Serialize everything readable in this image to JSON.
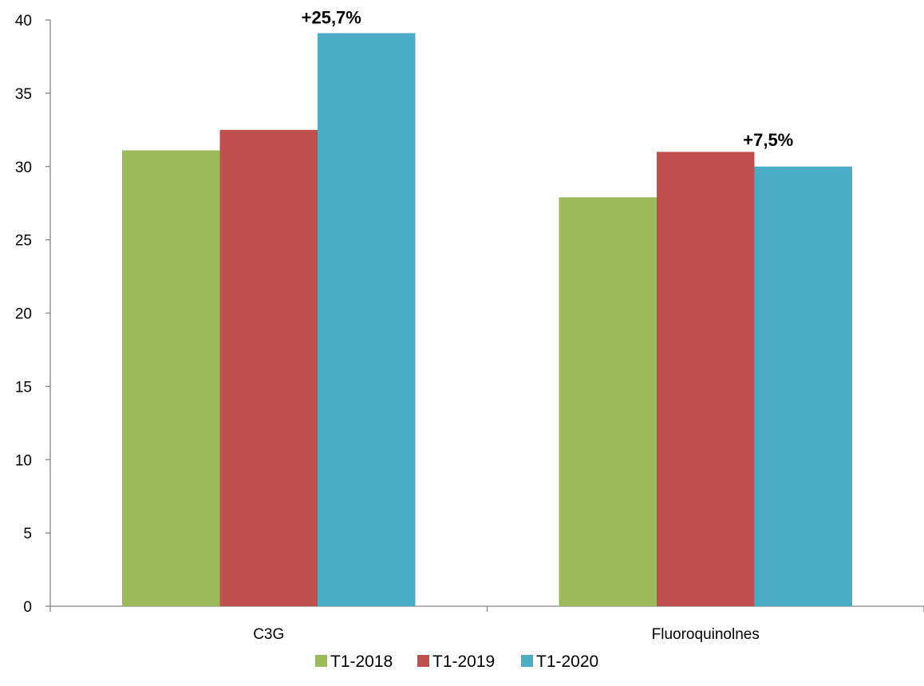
{
  "chart_data": {
    "type": "bar",
    "categories": [
      "C3G",
      "Fluoroquinolnes"
    ],
    "series": [
      {
        "name": "T1-2018",
        "values": [
          31.1,
          27.9
        ],
        "color": "#9BBB59"
      },
      {
        "name": "T1-2019",
        "values": [
          32.5,
          31.0
        ],
        "color": "#C0504D"
      },
      {
        "name": "T1-2020",
        "values": [
          39.1,
          30.0
        ],
        "color": "#4BACC6"
      }
    ],
    "annotations": [
      {
        "category": "C3G",
        "series": "T1-2020",
        "text": "+25,7%"
      },
      {
        "category": "Fluoroquinolnes",
        "series": "T1-2020",
        "text": "+7,5%"
      }
    ],
    "yticks": [
      "0",
      "5",
      "10",
      "15",
      "20",
      "25",
      "30",
      "35",
      "40"
    ],
    "ylim": [
      0,
      40
    ],
    "grid": false,
    "legend_position": "bottom"
  }
}
